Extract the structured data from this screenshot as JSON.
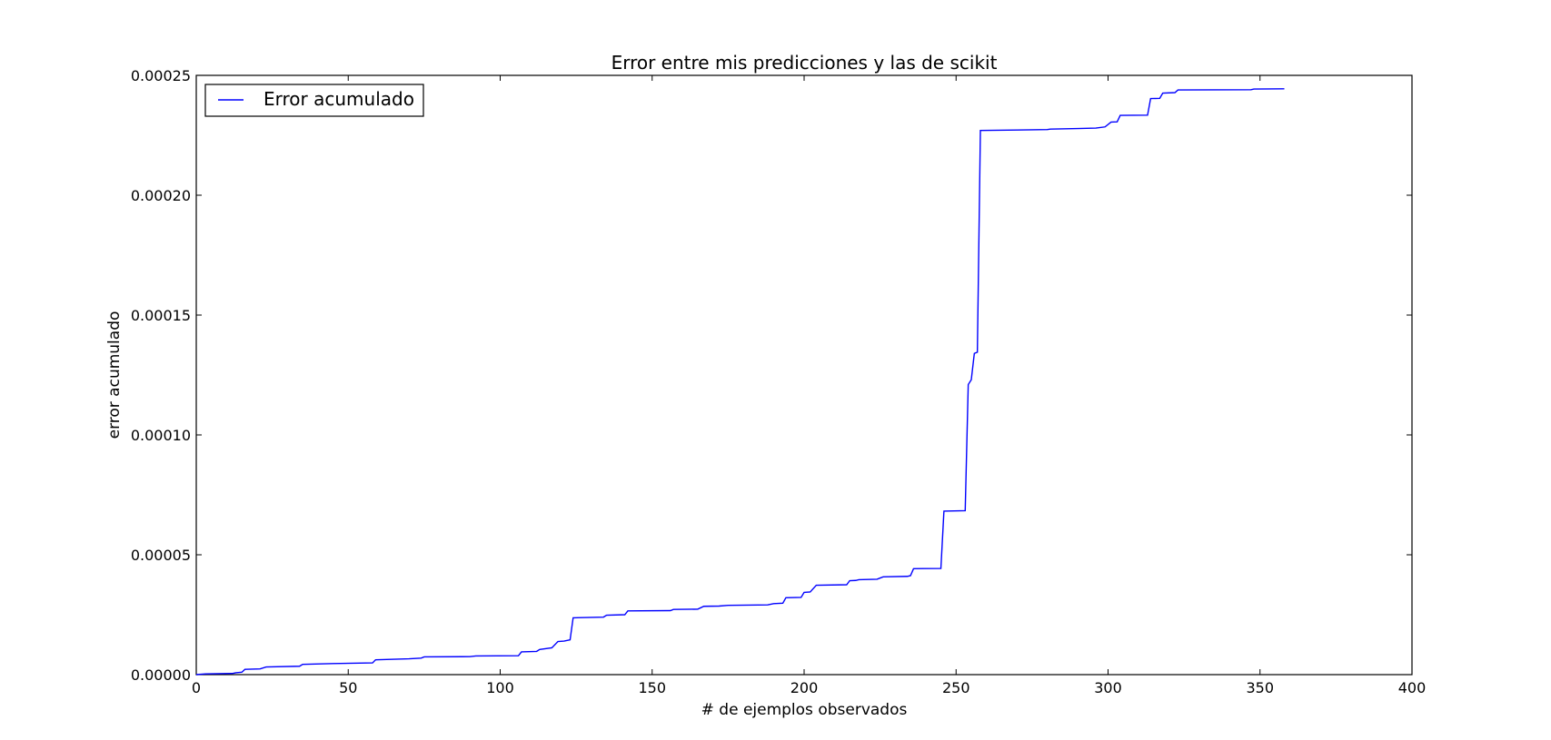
{
  "chart_data": {
    "type": "line",
    "title": "Error entre mis predicciones y las de scikit",
    "xlabel": "# de ejemplos observados",
    "ylabel": "error acumulado",
    "xlim": [
      0,
      400
    ],
    "ylim": [
      0,
      0.00025
    ],
    "x_ticks": [
      0,
      50,
      100,
      150,
      200,
      250,
      300,
      350,
      400
    ],
    "y_ticks": [
      0,
      5e-05,
      0.0001,
      0.00015,
      0.0002,
      0.00025
    ],
    "x_tick_labels": [
      "0",
      "50",
      "100",
      "150",
      "200",
      "250",
      "300",
      "350",
      "400"
    ],
    "y_tick_labels": [
      "0.00000",
      "0.00005",
      "0.00010",
      "0.00015",
      "0.00020",
      "0.00025"
    ],
    "grid": false,
    "legend_position": "upper left",
    "series": [
      {
        "name": "Error acumulado",
        "color": "#0000ff",
        "points": [
          [
            0,
            0.0
          ],
          [
            3,
            3e-07
          ],
          [
            12,
            5e-07
          ],
          [
            13,
            8e-07
          ],
          [
            15,
            1e-06
          ],
          [
            16,
            2.2e-06
          ],
          [
            21,
            2.4e-06
          ],
          [
            23,
            3.2e-06
          ],
          [
            34,
            3.5e-06
          ],
          [
            35,
            4.3e-06
          ],
          [
            45,
            4.6e-06
          ],
          [
            58,
            4.9e-06
          ],
          [
            59,
            6.2e-06
          ],
          [
            70,
            6.6e-06
          ],
          [
            74,
            6.9e-06
          ],
          [
            75,
            7.4e-06
          ],
          [
            90,
            7.5e-06
          ],
          [
            92,
            7.8e-06
          ],
          [
            106,
            7.9e-06
          ],
          [
            107,
            9.5e-06
          ],
          [
            112,
            9.7e-06
          ],
          [
            113,
            1.05e-05
          ],
          [
            117,
            1.12e-05
          ],
          [
            119,
            1.38e-05
          ],
          [
            121,
            1.4e-05
          ],
          [
            123,
            1.45e-05
          ],
          [
            124,
            2.37e-05
          ],
          [
            134,
            2.4e-05
          ],
          [
            135,
            2.48e-05
          ],
          [
            141,
            2.5e-05
          ],
          [
            142,
            2.66e-05
          ],
          [
            156,
            2.67e-05
          ],
          [
            157,
            2.72e-05
          ],
          [
            165,
            2.73e-05
          ],
          [
            167,
            2.85e-05
          ],
          [
            172,
            2.86e-05
          ],
          [
            175,
            2.89e-05
          ],
          [
            188,
            2.91e-05
          ],
          [
            190,
            2.96e-05
          ],
          [
            193,
            2.98e-05
          ],
          [
            194,
            3.21e-05
          ],
          [
            199,
            3.22e-05
          ],
          [
            200,
            3.43e-05
          ],
          [
            202,
            3.45e-05
          ],
          [
            204,
            3.73e-05
          ],
          [
            214,
            3.75e-05
          ],
          [
            215,
            3.92e-05
          ],
          [
            217,
            3.93e-05
          ],
          [
            218,
            3.96e-05
          ],
          [
            224,
            3.98e-05
          ],
          [
            226,
            4.08e-05
          ],
          [
            234,
            4.1e-05
          ],
          [
            235,
            4.13e-05
          ],
          [
            236,
            4.42e-05
          ],
          [
            245,
            4.43e-05
          ],
          [
            246,
            6.82e-05
          ],
          [
            253,
            6.84e-05
          ],
          [
            254,
            0.000121
          ],
          [
            255,
            0.000123
          ],
          [
            256,
            0.000134
          ],
          [
            257,
            0.0001345
          ],
          [
            258,
            0.000227
          ],
          [
            270,
            0.0002272
          ],
          [
            280,
            0.0002274
          ],
          [
            281,
            0.0002276
          ],
          [
            290,
            0.0002278
          ],
          [
            296,
            0.000228
          ],
          [
            299,
            0.0002285
          ],
          [
            301,
            0.0002305
          ],
          [
            303,
            0.0002306
          ],
          [
            304,
            0.0002333
          ],
          [
            313,
            0.0002334
          ],
          [
            314,
            0.0002403
          ],
          [
            317,
            0.0002404
          ],
          [
            318,
            0.0002426
          ],
          [
            322,
            0.0002428
          ],
          [
            323,
            0.0002439
          ],
          [
            347,
            0.000244
          ],
          [
            348,
            0.0002443
          ],
          [
            358,
            0.0002444
          ]
        ]
      }
    ]
  }
}
